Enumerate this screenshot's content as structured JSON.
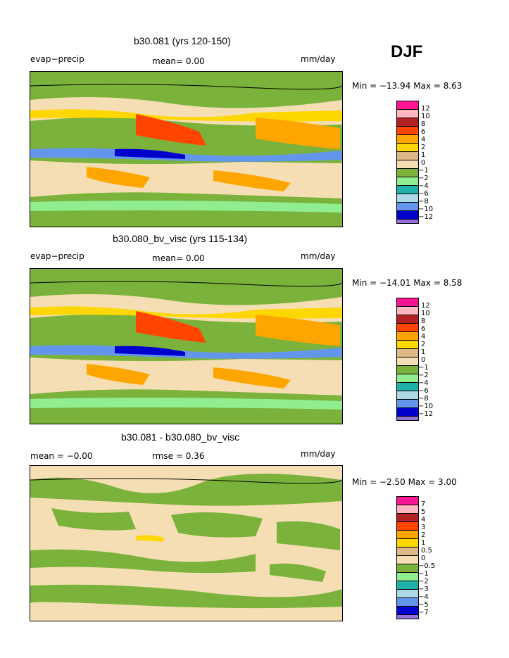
{
  "season": "DJF",
  "colors": {
    "pink": "#ff1493",
    "lightpink": "#ffb6c1",
    "darkred": "#b22222",
    "red": "#ff4500",
    "orange": "#ffa500",
    "yellow": "#ffd700",
    "tan": "#deb887",
    "cream": "#f5deb3",
    "green": "#7ab23c",
    "lightgreen": "#90ee90",
    "teal": "#20b2aa",
    "lightblue": "#add8e6",
    "cornflower": "#6495ed",
    "blue": "#4169e1",
    "navy": "#0000cd",
    "purple": "#9370db"
  },
  "chart_data": [
    {
      "type": "heatmap",
      "title": "b30.081 (yrs 120-150)",
      "left_label": "evap−precip",
      "center_label": "mean=     0.00",
      "units": "mm/day",
      "minmax": "Min = −13.94 Max =    8.63",
      "min": -13.94,
      "max": 8.63,
      "mean": 0.0,
      "levels": [
        "12",
        "10",
        "8",
        "6",
        "4",
        "2",
        "1",
        "0",
        "−1",
        "−2",
        "−4",
        "−6",
        "−8",
        "−10",
        "−12"
      ]
    },
    {
      "type": "heatmap",
      "title": "b30.080_bv_visc (yrs 115-134)",
      "left_label": "evap−precip",
      "center_label": "mean=     0.00",
      "units": "mm/day",
      "minmax": "Min = −14.01 Max =    8.58",
      "min": -14.01,
      "max": 8.58,
      "mean": 0.0,
      "levels": [
        "12",
        "10",
        "8",
        "6",
        "4",
        "2",
        "1",
        "0",
        "−1",
        "−2",
        "−4",
        "−6",
        "−8",
        "−10",
        "−12"
      ]
    },
    {
      "type": "heatmap",
      "title": "b30.081 - b30.080_bv_visc",
      "left_label": "mean =   −0.00",
      "center_label": "rmse =     0.36",
      "units": "mm/day",
      "minmax": "Min =   −2.50 Max =    3.00",
      "min": -2.5,
      "max": 3.0,
      "mean": -0.0,
      "rmse": 0.36,
      "levels": [
        "7",
        "5",
        "4",
        "3",
        "2",
        "1",
        "0.5",
        "0",
        "−0.5",
        "−1",
        "−2",
        "−3",
        "−4",
        "−5",
        "−7"
      ]
    }
  ]
}
